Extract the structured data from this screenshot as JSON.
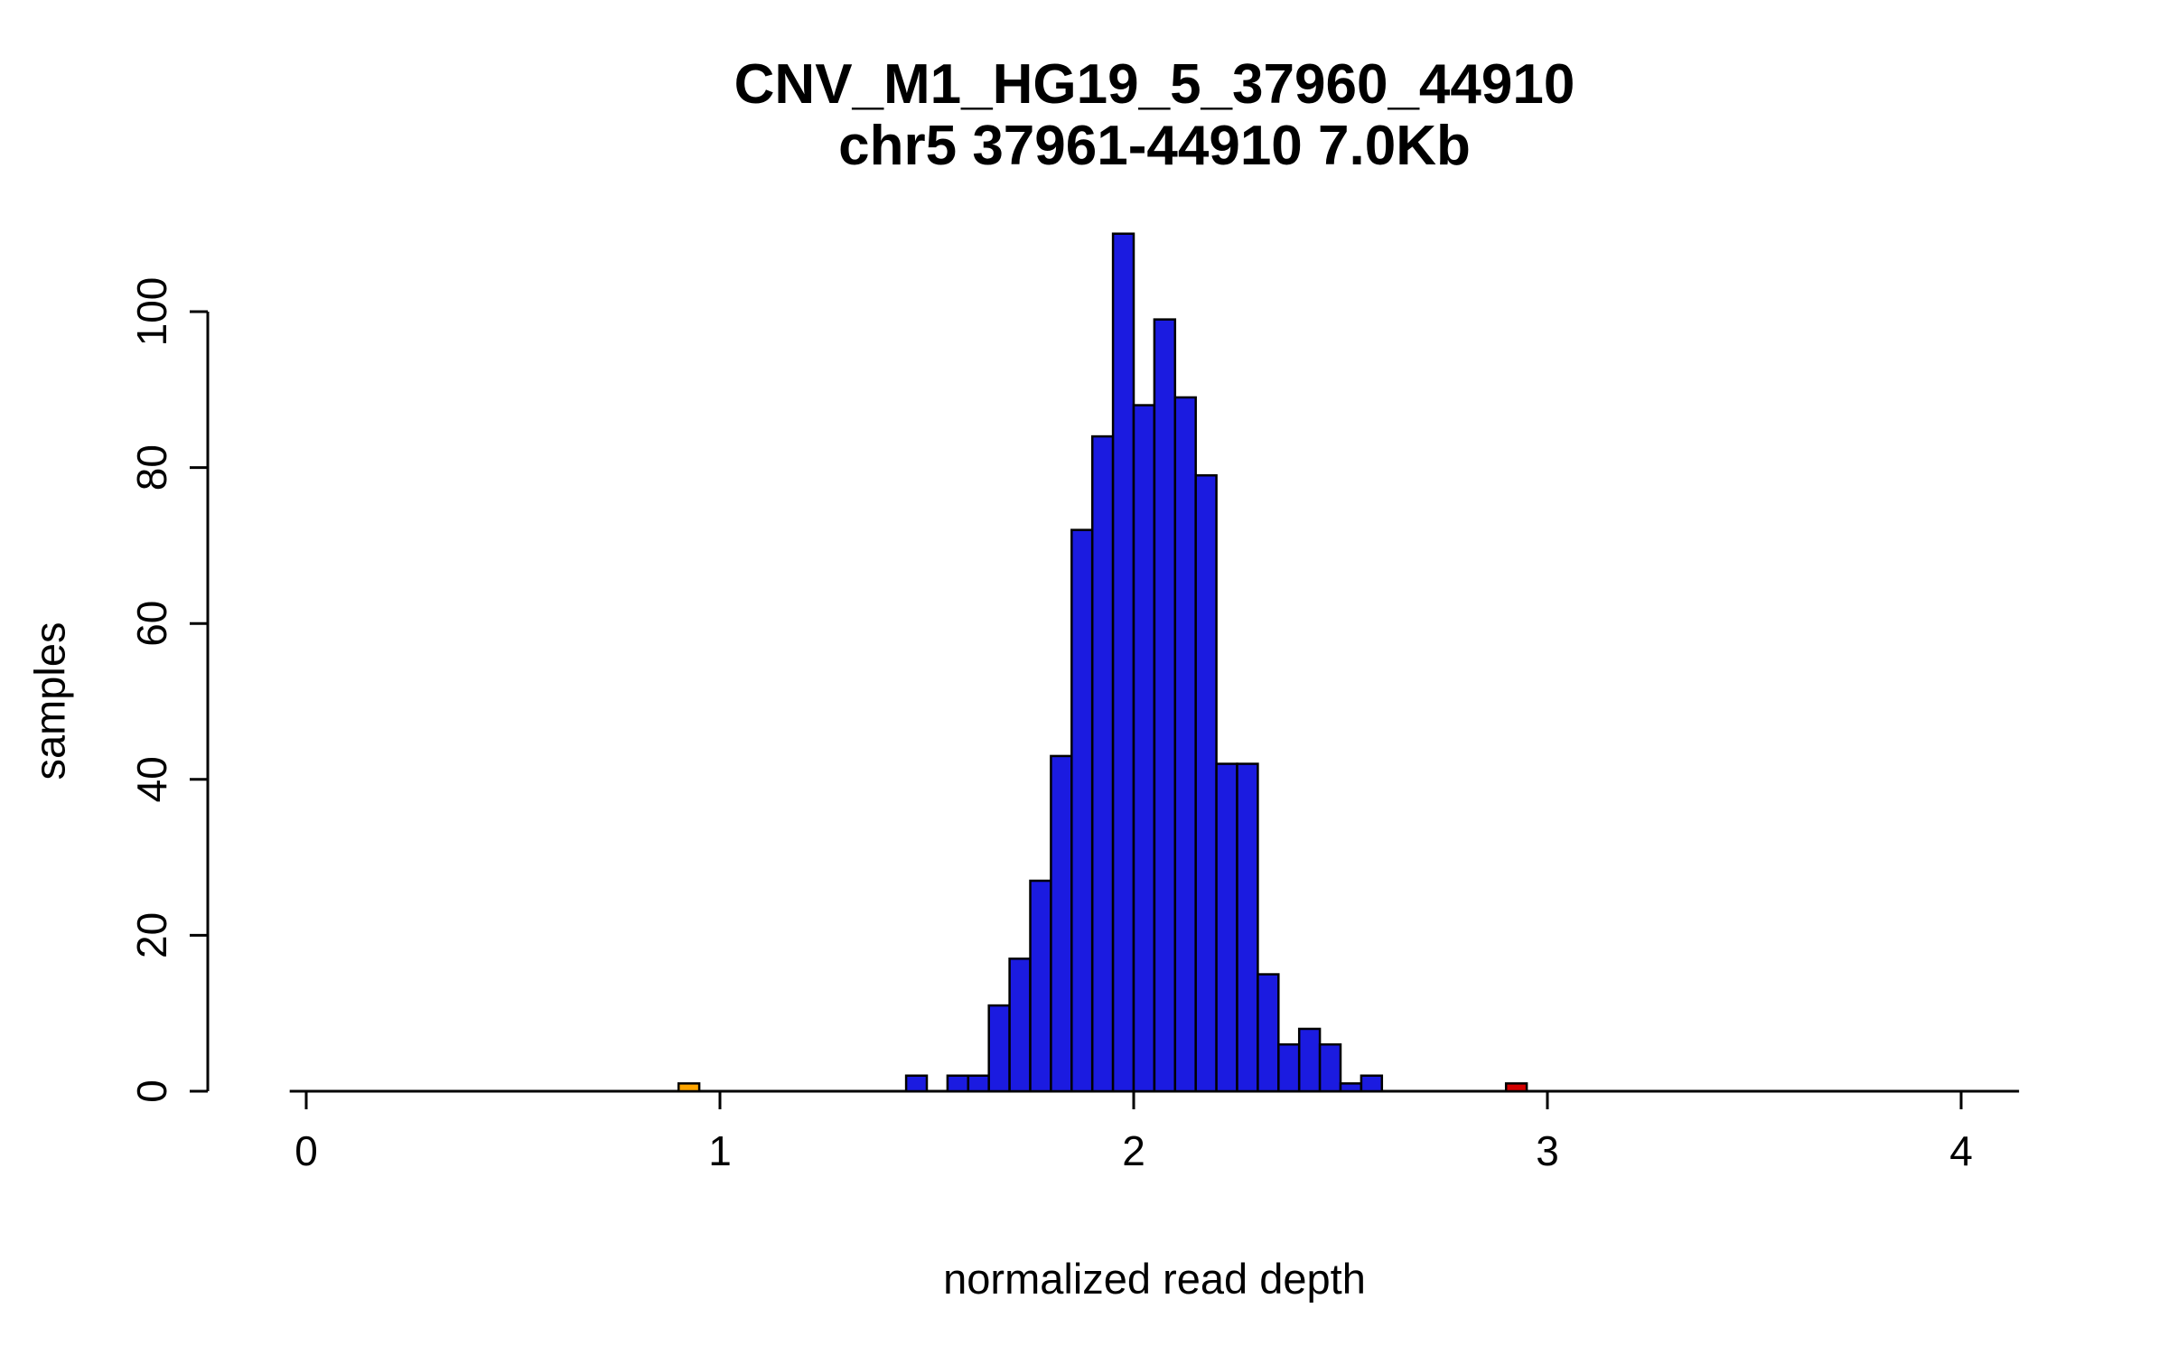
{
  "title": "CNV_M1_HG19_5_37960_44910",
  "subtitle": "chr5 37961-44910 7.0Kb",
  "chart_data": {
    "type": "bar",
    "subtype": "histogram",
    "title": "CNV_M1_HG19_5_37960_44910",
    "subtitle": "chr5 37961-44910 7.0Kb",
    "xlabel": "normalized read depth",
    "ylabel": "samples",
    "xlim": [
      0,
      4.15
    ],
    "ylim": [
      0,
      110
    ],
    "x_ticks": [
      "0",
      "1",
      "2",
      "3",
      "4"
    ],
    "y_ticks": [
      "0",
      "20",
      "40",
      "60",
      "80",
      "100"
    ],
    "grid": "off",
    "legend": "none",
    "bin_width": 0.05,
    "colors": {
      "blue": "#1b1be0",
      "orange": "#ffa500",
      "red": "#d40000"
    },
    "bars": [
      {
        "x": 0.9,
        "count": 1,
        "color": "orange"
      },
      {
        "x": 1.45,
        "count": 2,
        "color": "blue"
      },
      {
        "x": 1.55,
        "count": 2,
        "color": "blue"
      },
      {
        "x": 1.6,
        "count": 2,
        "color": "blue"
      },
      {
        "x": 1.65,
        "count": 11,
        "color": "blue"
      },
      {
        "x": 1.7,
        "count": 17,
        "color": "blue"
      },
      {
        "x": 1.75,
        "count": 27,
        "color": "blue"
      },
      {
        "x": 1.8,
        "count": 43,
        "color": "blue"
      },
      {
        "x": 1.85,
        "count": 72,
        "color": "blue"
      },
      {
        "x": 1.9,
        "count": 84,
        "color": "blue"
      },
      {
        "x": 1.95,
        "count": 110,
        "color": "blue"
      },
      {
        "x": 2.0,
        "count": 88,
        "color": "blue"
      },
      {
        "x": 2.05,
        "count": 99,
        "color": "blue"
      },
      {
        "x": 2.1,
        "count": 89,
        "color": "blue"
      },
      {
        "x": 2.15,
        "count": 79,
        "color": "blue"
      },
      {
        "x": 2.2,
        "count": 42,
        "color": "blue"
      },
      {
        "x": 2.25,
        "count": 42,
        "color": "blue"
      },
      {
        "x": 2.3,
        "count": 15,
        "color": "blue"
      },
      {
        "x": 2.35,
        "count": 6,
        "color": "blue"
      },
      {
        "x": 2.4,
        "count": 8,
        "color": "blue"
      },
      {
        "x": 2.45,
        "count": 6,
        "color": "blue"
      },
      {
        "x": 2.5,
        "count": 1,
        "color": "blue"
      },
      {
        "x": 2.55,
        "count": 2,
        "color": "blue"
      },
      {
        "x": 2.9,
        "count": 1,
        "color": "red"
      }
    ]
  }
}
